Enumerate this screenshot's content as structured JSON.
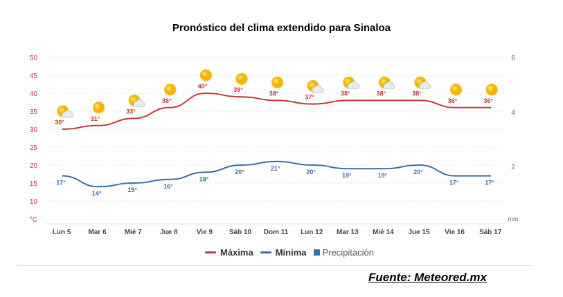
{
  "chart_data": {
    "type": "line",
    "title": "Pronóstico del clima extendido para Sinaloa",
    "categories": [
      "Lun 5",
      "Mar 6",
      "Mié 7",
      "Jue 8",
      "Vie 9",
      "Sáb 10",
      "Dom 11",
      "Lun 12",
      "Mar 13",
      "Mié 14",
      "Jue 15",
      "Vie 16",
      "Sáb 17"
    ],
    "y_left": {
      "unit": "°C",
      "ticks": [
        10,
        15,
        20,
        25,
        30,
        35,
        40,
        45,
        50
      ],
      "range": [
        5,
        50
      ]
    },
    "y_right": {
      "unit": "mm",
      "ticks": [
        2,
        4,
        6
      ],
      "range": [
        0,
        6
      ]
    },
    "series": [
      {
        "name": "Máxima",
        "color": "#c0393b",
        "values": [
          30,
          31,
          33,
          36,
          40,
          39,
          38,
          37,
          38,
          38,
          38,
          36,
          36
        ],
        "labels": [
          "30°",
          "31°",
          "33°",
          "36°",
          "40°",
          "39°",
          "38°",
          "37°",
          "38°",
          "38°",
          "38°",
          "36°",
          "36°"
        ]
      },
      {
        "name": "Mínima",
        "color": "#3a6ea5",
        "values": [
          17,
          14,
          15,
          16,
          18,
          20,
          21,
          20,
          19,
          19,
          20,
          17,
          17
        ],
        "labels": [
          "17°",
          "14°",
          "15°",
          "16°",
          "18°",
          "20°",
          "21°",
          "20°",
          "19°",
          "19°",
          "20°",
          "17°",
          "17°"
        ]
      },
      {
        "name": "Precipitación",
        "color": "#2e75b6",
        "values": [
          0,
          0,
          0,
          0,
          0,
          0,
          0,
          0,
          0,
          0,
          0,
          0,
          0
        ]
      }
    ],
    "weather_icons": [
      "sun-cloud",
      "sun",
      "sun-cloud",
      "sun",
      "sun",
      "sun",
      "sun",
      "sun-cloud",
      "sun-cloud",
      "sun-cloud",
      "sun-cloud",
      "sun",
      "sun"
    ],
    "legend": [
      "Máxima",
      "Mínima",
      "Precipitación"
    ]
  },
  "source": "Fuente: Meteored.mx"
}
